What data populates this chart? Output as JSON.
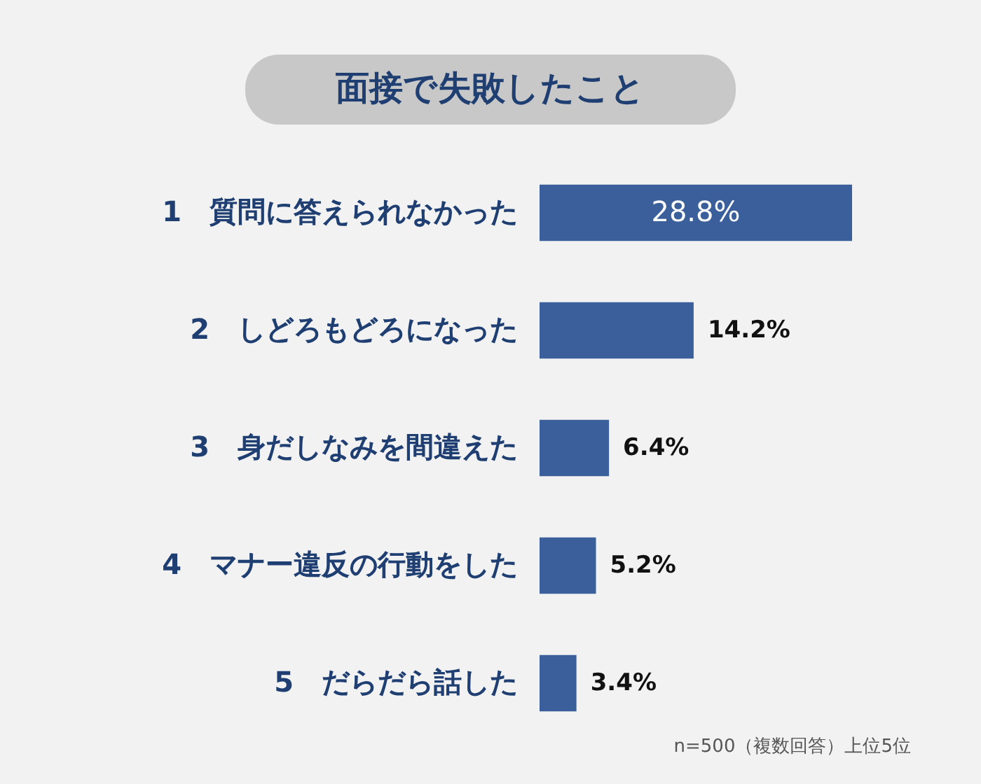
{
  "chart_data": {
    "type": "bar",
    "orientation": "horizontal",
    "title": "面接で失敗したこと",
    "categories": [
      "1　質問に答えられなかった",
      "2　しどろもどろになった",
      "3　身だしなみを間違えた",
      "4　マナー違反の行動をした",
      "5　だらだら話した"
    ],
    "values": [
      28.8,
      14.2,
      6.4,
      5.2,
      3.4
    ],
    "value_labels": [
      "28.8%",
      "14.2%",
      "6.4%",
      "5.2%",
      "3.4%"
    ],
    "color": "#3a5f9b",
    "annotations": [
      "n=500（複数回答）上位5位"
    ]
  }
}
